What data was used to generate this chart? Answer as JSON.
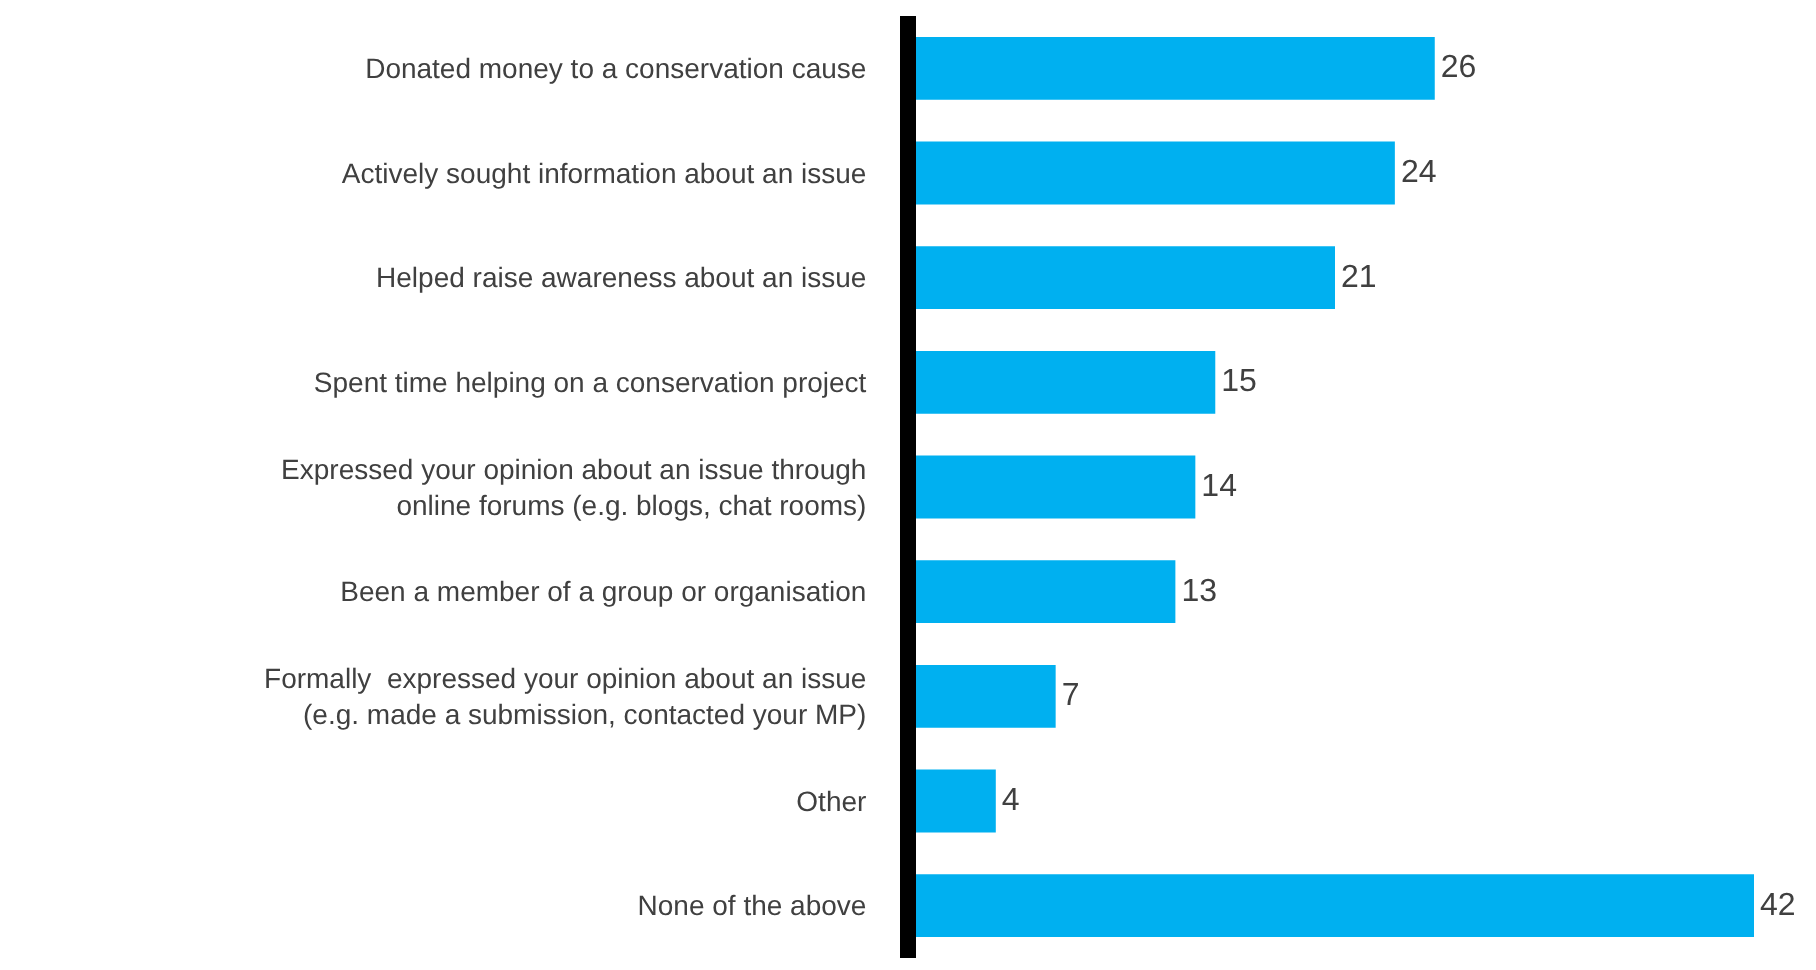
{
  "chart_data": {
    "type": "bar",
    "orientation": "horizontal",
    "categories": [
      "Donated money to a conservation cause",
      "Actively sought information about an issue",
      "Helped raise awareness about an issue",
      "Spent time helping on a conservation project",
      "Expressed your opinion about an issue through\nonline forums (e.g. blogs, chat rooms)",
      "Been a member of a group or organisation",
      "Formally  expressed your opinion about an issue\n(e.g. made a submission, contacted your MP)",
      "Other",
      "None of the above"
    ],
    "values": [
      26,
      24,
      21,
      15,
      14,
      13,
      7,
      4,
      42
    ],
    "color": "#00b0f0",
    "xlim": [
      0,
      42
    ],
    "data_labels": true,
    "tick_labels": "y"
  }
}
